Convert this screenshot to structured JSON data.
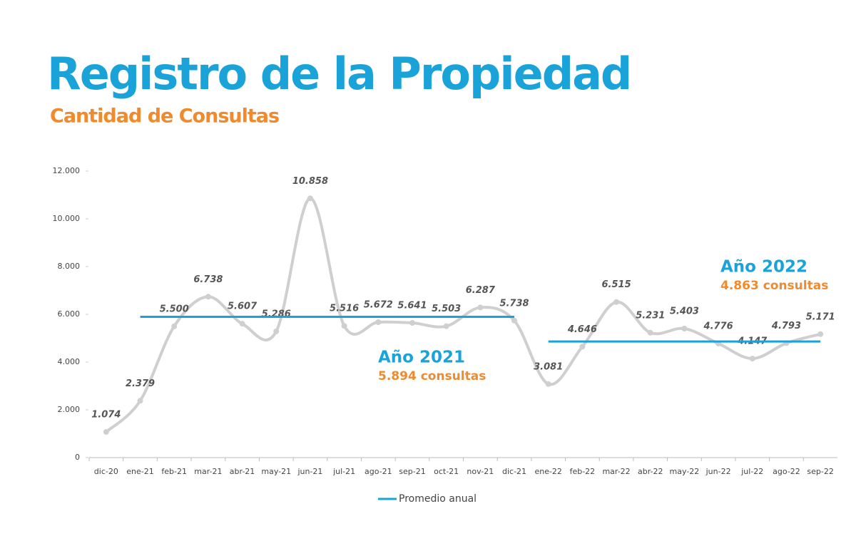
{
  "chart_data": {
    "type": "line",
    "title": "Registro de la Propiedad",
    "subtitle": "Cantidad de Consultas",
    "categories": [
      "dic-20",
      "ene-21",
      "feb-21",
      "mar-21",
      "abr-21",
      "may-21",
      "jun-21",
      "jul-21",
      "ago-21",
      "sep-21",
      "oct-21",
      "nov-21",
      "dic-21",
      "ene-22",
      "feb-22",
      "mar-22",
      "abr-22",
      "may-22",
      "jun-22",
      "jul-22",
      "ago-22",
      "sep-22"
    ],
    "series": [
      {
        "color": "#cfcfcf",
        "values": [
          1074,
          2379,
          5500,
          6738,
          5607,
          5286,
          10858,
          5516,
          5672,
          5641,
          5503,
          6287,
          5738,
          3081,
          4646,
          6515,
          5231,
          5403,
          4776,
          4147,
          4793,
          5171
        ],
        "value_labels": [
          "1.074",
          "2.379",
          "5.500",
          "6.738",
          "5.607",
          "5.286",
          "10.858",
          "5.516",
          "5.672",
          "5.641",
          "5.503",
          "6.287",
          "5.738",
          "3.081",
          "4.646",
          "6.515",
          "5.231",
          "5.403",
          "4.776",
          "4.147",
          "4.793",
          "5.171"
        ]
      },
      {
        "name": "Promedio anual",
        "color": "#1aa3d9",
        "values": [
          null,
          5894,
          5894,
          5894,
          5894,
          5894,
          5894,
          5894,
          5894,
          5894,
          5894,
          5894,
          5894,
          4863,
          4863,
          4863,
          4863,
          4863,
          4863,
          4863,
          4863,
          4863
        ]
      }
    ],
    "annotations": [
      {
        "title": "Año 2021",
        "text": "5.894 consultas"
      },
      {
        "title": "Año 2022",
        "text": "4.863 consultas"
      }
    ],
    "ylim": [
      0,
      12000
    ],
    "yticks": [
      {
        "value": 0,
        "label": "0"
      },
      {
        "value": 2000,
        "label": "2.000"
      },
      {
        "value": 4000,
        "label": "4.000"
      },
      {
        "value": 6000,
        "label": "6.000"
      },
      {
        "value": 8000,
        "label": "8.000"
      },
      {
        "value": 10000,
        "label": "10.000"
      },
      {
        "value": 12000,
        "label": "12.000"
      }
    ],
    "grid": false,
    "legend": "bottom"
  }
}
